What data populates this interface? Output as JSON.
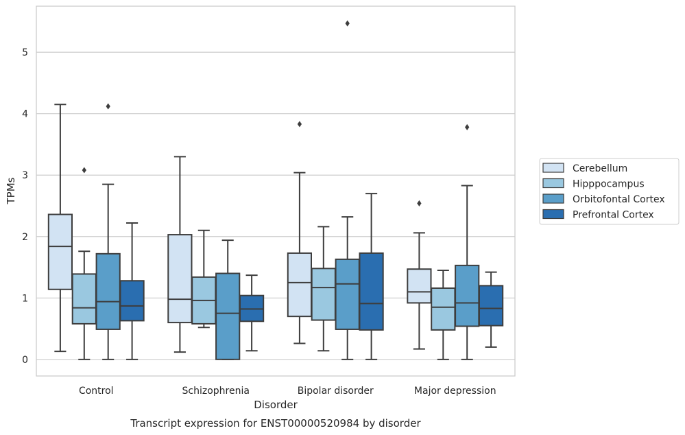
{
  "chart_data": {
    "type": "box",
    "xlabel": "Disorder",
    "ylabel": "TPMs",
    "caption": "Transcript expression for ENST00000520984 by disorder",
    "ylim": [
      -0.27,
      5.75
    ],
    "yticks": [
      0,
      1,
      2,
      3,
      4,
      5
    ],
    "grid": "horizontal",
    "legend_position": "right",
    "categories": [
      "Control",
      "Schizophrenia",
      "Bipolar disorder",
      "Major depression"
    ],
    "series": [
      {
        "name": "Cerebellum",
        "color": "#d2e3f3",
        "boxes": [
          {
            "whisker_low": 0.13,
            "q1": 1.14,
            "median": 1.84,
            "q3": 2.36,
            "whisker_high": 4.15,
            "outliers": []
          },
          {
            "whisker_low": 0.12,
            "q1": 0.6,
            "median": 0.98,
            "q3": 2.03,
            "whisker_high": 3.3,
            "outliers": []
          },
          {
            "whisker_low": 0.26,
            "q1": 0.7,
            "median": 1.25,
            "q3": 1.73,
            "whisker_high": 3.04,
            "outliers": [
              3.83
            ]
          },
          {
            "whisker_low": 0.17,
            "q1": 0.92,
            "median": 1.1,
            "q3": 1.47,
            "whisker_high": 2.06,
            "outliers": [
              2.54
            ]
          }
        ]
      },
      {
        "name": "Hipppocampus",
        "color": "#9ac8e0",
        "boxes": [
          {
            "whisker_low": 0.0,
            "q1": 0.58,
            "median": 0.84,
            "q3": 1.39,
            "whisker_high": 1.76,
            "outliers": [
              3.08
            ]
          },
          {
            "whisker_low": 0.52,
            "q1": 0.58,
            "median": 0.96,
            "q3": 1.34,
            "whisker_high": 2.1,
            "outliers": []
          },
          {
            "whisker_low": 0.14,
            "q1": 0.64,
            "median": 1.17,
            "q3": 1.48,
            "whisker_high": 2.16,
            "outliers": []
          },
          {
            "whisker_low": 0.0,
            "q1": 0.48,
            "median": 0.85,
            "q3": 1.16,
            "whisker_high": 1.45,
            "outliers": []
          }
        ]
      },
      {
        "name": "Orbitofontal Cortex",
        "color": "#5a9ec9",
        "boxes": [
          {
            "whisker_low": 0.0,
            "q1": 0.49,
            "median": 0.94,
            "q3": 1.72,
            "whisker_high": 2.85,
            "outliers": [
              4.12
            ]
          },
          {
            "whisker_low": 0.0,
            "q1": 0.0,
            "median": 0.75,
            "q3": 1.4,
            "whisker_high": 1.94,
            "outliers": []
          },
          {
            "whisker_low": 0.0,
            "q1": 0.49,
            "median": 1.23,
            "q3": 1.63,
            "whisker_high": 2.32,
            "outliers": [
              5.47
            ]
          },
          {
            "whisker_low": 0.0,
            "q1": 0.54,
            "median": 0.92,
            "q3": 1.53,
            "whisker_high": 2.83,
            "outliers": [
              3.78
            ]
          }
        ]
      },
      {
        "name": "Prefrontal Cortex",
        "color": "#2a6eb0",
        "boxes": [
          {
            "whisker_low": 0.0,
            "q1": 0.63,
            "median": 0.87,
            "q3": 1.28,
            "whisker_high": 2.22,
            "outliers": []
          },
          {
            "whisker_low": 0.14,
            "q1": 0.62,
            "median": 0.82,
            "q3": 1.04,
            "whisker_high": 1.37,
            "outliers": []
          },
          {
            "whisker_low": 0.0,
            "q1": 0.48,
            "median": 0.91,
            "q3": 1.73,
            "whisker_high": 2.7,
            "outliers": []
          },
          {
            "whisker_low": 0.2,
            "q1": 0.55,
            "median": 0.83,
            "q3": 1.2,
            "whisker_high": 1.42,
            "outliers": []
          }
        ]
      }
    ]
  }
}
